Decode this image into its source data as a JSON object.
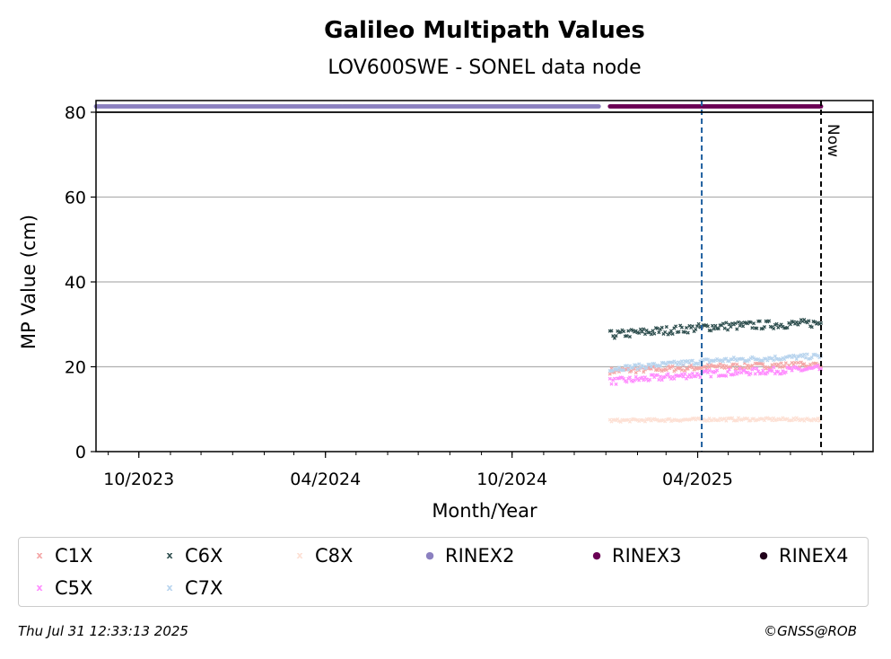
{
  "chart_data": {
    "type": "scatter",
    "title": "Galileo Multipath Values",
    "subtitle": "LOV600SWE - SONEL data node",
    "xlabel": "Month/Year",
    "ylabel": "MP Value (cm)",
    "xlim": [
      "2023-08-20",
      "2025-09-20"
    ],
    "ylim": [
      0,
      80
    ],
    "y_ticks": [
      0,
      20,
      40,
      60,
      80
    ],
    "x_ticks": [
      {
        "date": "2023-10-01",
        "label": "10/2023"
      },
      {
        "date": "2024-04-01",
        "label": "04/2024"
      },
      {
        "date": "2024-10-01",
        "label": "10/2024"
      },
      {
        "date": "2025-04-01",
        "label": "04/2025"
      }
    ],
    "grid": "horizontal",
    "series": [
      {
        "name": "C1X",
        "marker": "x",
        "color": "#f4a6a6",
        "start": "2025-01-05",
        "end": "2025-07-31",
        "level": [
          19,
          20,
          20.5
        ],
        "noise": 0.7
      },
      {
        "name": "C5X",
        "marker": "x",
        "color": "#ff8cff",
        "start": "2025-01-05",
        "end": "2025-07-31",
        "level": [
          16.5,
          18.5,
          19.5
        ],
        "noise": 0.8
      },
      {
        "name": "C6X",
        "marker": "x",
        "color": "#2f4f4f",
        "start": "2025-01-05",
        "end": "2025-07-31",
        "level": [
          27.5,
          29.5,
          30.3
        ],
        "noise": 1.0
      },
      {
        "name": "C7X",
        "marker": "x",
        "color": "#b8d4ee",
        "start": "2025-01-05",
        "end": "2025-07-31",
        "level": [
          19.5,
          21.5,
          22.5
        ],
        "noise": 0.6
      },
      {
        "name": "C8X",
        "marker": "x",
        "color": "#fde0d4",
        "start": "2025-01-05",
        "end": "2025-07-31",
        "level": [
          7.3,
          7.6,
          7.6
        ],
        "noise": 0.35
      }
    ],
    "rinex_bars": [
      {
        "name": "RINEX2",
        "marker": "o",
        "color": "#8b80c0",
        "start": "2023-08-20",
        "end": "2024-12-25"
      },
      {
        "name": "RINEX3",
        "marker": "o",
        "color": "#6a0054",
        "start": "2025-01-05",
        "end": "2025-07-31"
      },
      {
        "name": "RINEX4",
        "marker": "o",
        "color": "#20001a",
        "start": null,
        "end": null
      }
    ],
    "vlines": [
      {
        "date": "2025-04-05",
        "color": "#1f5f9f",
        "style": "dashed"
      },
      {
        "date": "2025-07-31",
        "color": "#000000",
        "style": "dashed",
        "label": "Now"
      }
    ]
  },
  "legend": {
    "items": [
      {
        "name": "C1X",
        "symbol": "x",
        "color": "#f4a6a6"
      },
      {
        "name": "C6X",
        "symbol": "x",
        "color": "#2f4f4f"
      },
      {
        "name": "C8X",
        "symbol": "x",
        "color": "#fde0d4"
      },
      {
        "name": "RINEX2",
        "symbol": "●",
        "color": "#8b80c0"
      },
      {
        "name": "RINEX3",
        "symbol": "●",
        "color": "#6a0054"
      },
      {
        "name": "RINEX4",
        "symbol": "●",
        "color": "#20001a"
      },
      {
        "name": "C5X",
        "symbol": "x",
        "color": "#ff8cff"
      },
      {
        "name": "C7X",
        "symbol": "x",
        "color": "#b8d4ee"
      }
    ]
  },
  "footer": {
    "timestamp": "Thu Jul 31 12:33:13 2025",
    "credit": "©GNSS@ROB"
  }
}
